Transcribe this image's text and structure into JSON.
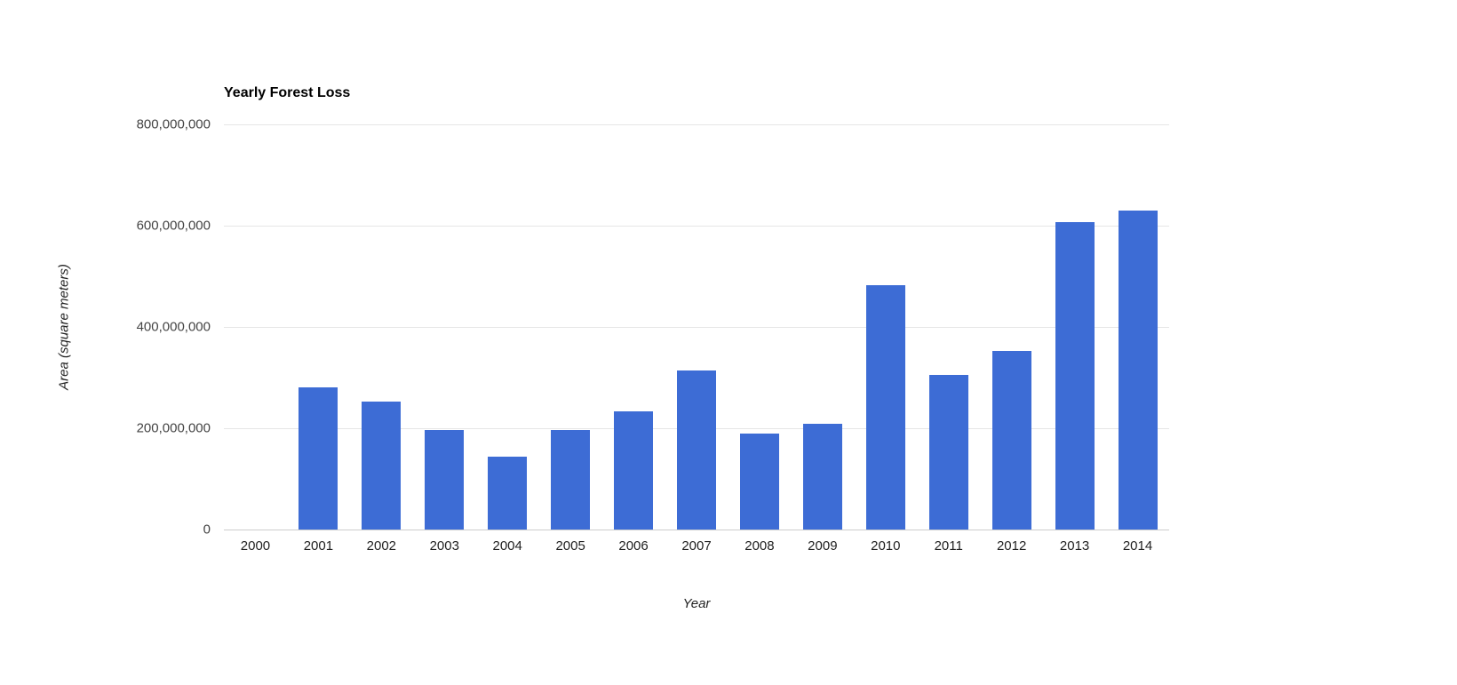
{
  "chart_data": {
    "type": "bar",
    "title": "Yearly Forest Loss",
    "xlabel": "Year",
    "ylabel": "Area (square meters)",
    "categories": [
      "2000",
      "2001",
      "2002",
      "2003",
      "2004",
      "2005",
      "2006",
      "2007",
      "2008",
      "2009",
      "2010",
      "2011",
      "2012",
      "2013",
      "2014"
    ],
    "values": [
      0,
      280000000,
      252000000,
      196000000,
      144000000,
      196000000,
      233000000,
      314000000,
      189000000,
      208000000,
      483000000,
      305000000,
      352000000,
      607000000,
      630000000
    ],
    "ylim": [
      0,
      800000000
    ],
    "yticks": [
      0,
      200000000,
      400000000,
      600000000,
      800000000
    ],
    "ytick_labels": [
      "0",
      "200,000,000",
      "400,000,000",
      "600,000,000",
      "800,000,000"
    ],
    "bar_color": "#3d6cd5",
    "grid": true,
    "legend": "none",
    "background": "#ffffff"
  }
}
